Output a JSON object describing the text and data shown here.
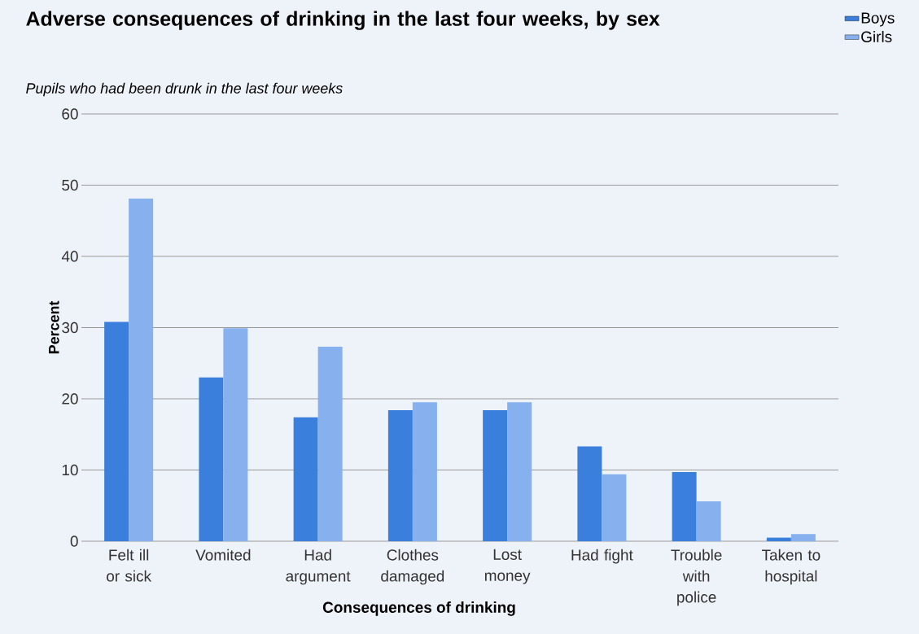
{
  "chart_data": {
    "type": "bar",
    "title": "Adverse consequences of drinking in the last four weeks, by sex",
    "subtitle": "Pupils who had been drunk in the last four weeks",
    "xlabel": "Consequences of drinking",
    "ylabel": "Percent",
    "categories": [
      "Felt ill or sick",
      "Vomited",
      "Had argument",
      "Clothes damaged",
      "Lost money",
      "Had fight",
      "Trouble with police",
      "Taken to hospital"
    ],
    "series": [
      {
        "name": "Boys",
        "color": "#3a7fdb",
        "values": [
          30.8,
          23.0,
          17.4,
          18.4,
          18.4,
          13.3,
          9.7,
          0.5
        ]
      },
      {
        "name": "Girls",
        "color": "#86b0ee",
        "values": [
          48.1,
          29.9,
          27.3,
          19.5,
          19.5,
          9.4,
          5.6,
          1.0
        ]
      }
    ],
    "ylim": [
      0,
      60
    ],
    "yticks": [
      0,
      10,
      20,
      30,
      40,
      50,
      60
    ],
    "grid": "y",
    "legend": "top right"
  }
}
